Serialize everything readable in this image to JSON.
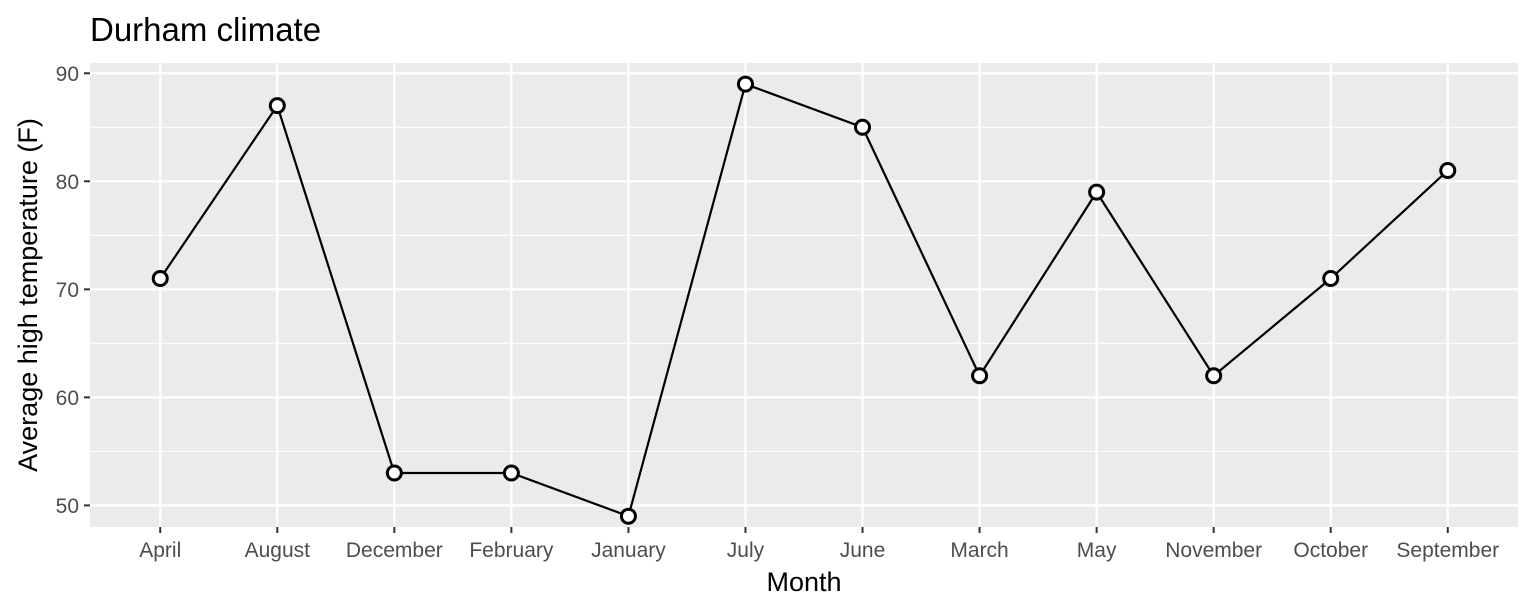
{
  "chart_data": {
    "type": "line",
    "title": "Durham climate",
    "xlabel": "Month",
    "ylabel": "Average high temperature (F)",
    "categories": [
      "April",
      "August",
      "December",
      "February",
      "January",
      "July",
      "June",
      "March",
      "May",
      "November",
      "October",
      "September"
    ],
    "series": [
      {
        "values": [
          71,
          87,
          53,
          53,
          49,
          89,
          85,
          62,
          79,
          62,
          71,
          81
        ]
      }
    ],
    "yticks": [
      50,
      60,
      70,
      80,
      90
    ],
    "ylim": [
      48.0,
      90.95
    ],
    "grid": true,
    "legend": "none",
    "colors": {
      "panel_background": "#ebebeb",
      "grid": "#ffffff",
      "line": "#000000",
      "point_fill": "#ffffff",
      "tick_text": "#4d4d4d",
      "tick_mark": "#333333"
    }
  }
}
